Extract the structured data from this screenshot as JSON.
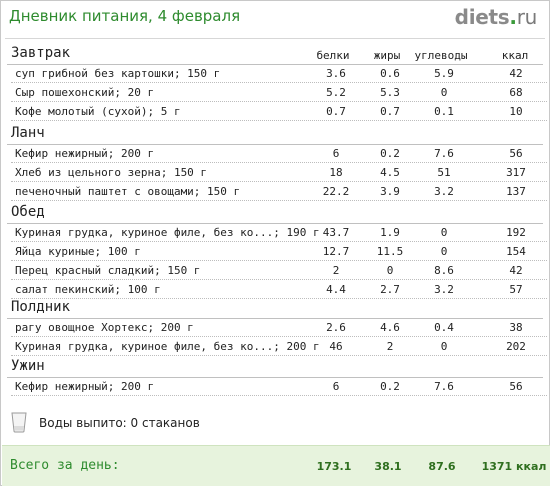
{
  "header": {
    "title": "Дневник питания, 4 февраля",
    "brand_name": "diets",
    "brand_dot": ".",
    "brand_tld": "ru"
  },
  "columns": {
    "protein": "белки",
    "fat": "жиры",
    "carbs": "углеводы",
    "kcal": "ккал"
  },
  "meals": [
    {
      "title": "Завтрак",
      "items": [
        {
          "name": "суп грибной без картошки; 150 г",
          "protein": "3.6",
          "fat": "0.6",
          "carbs": "5.9",
          "kcal": "42"
        },
        {
          "name": "Сыр пошехонский; 20 г",
          "protein": "5.2",
          "fat": "5.3",
          "carbs": "0",
          "kcal": "68"
        },
        {
          "name": "Кофе молотый (сухой); 5 г",
          "protein": "0.7",
          "fat": "0.7",
          "carbs": "0.1",
          "kcal": "10"
        }
      ]
    },
    {
      "title": "Ланч",
      "items": [
        {
          "name": "Кефир нежирный; 200 г",
          "protein": "6",
          "fat": "0.2",
          "carbs": "7.6",
          "kcal": "56"
        },
        {
          "name": "Хлеб из цельного зерна; 150 г",
          "protein": "18",
          "fat": "4.5",
          "carbs": "51",
          "kcal": "317"
        },
        {
          "name": "печеночный паштет с овощами; 150 г",
          "protein": "22.2",
          "fat": "3.9",
          "carbs": "3.2",
          "kcal": "137"
        }
      ]
    },
    {
      "title": "Обед",
      "items": [
        {
          "name": "Куриная грудка, куриное филе, без ко...; 190 г",
          "protein": "43.7",
          "fat": "1.9",
          "carbs": "0",
          "kcal": "192"
        },
        {
          "name": "Яйца куриные; 100 г",
          "protein": "12.7",
          "fat": "11.5",
          "carbs": "0",
          "kcal": "154"
        },
        {
          "name": "Перец красный сладкий; 150 г",
          "protein": "2",
          "fat": "0",
          "carbs": "8.6",
          "kcal": "42"
        },
        {
          "name": "салат пекинский; 100 г",
          "protein": "4.4",
          "fat": "2.7",
          "carbs": "3.2",
          "kcal": "57"
        }
      ]
    },
    {
      "title": "Полдник",
      "items": [
        {
          "name": "рагу овощное Хортекс; 200 г",
          "protein": "2.6",
          "fat": "4.6",
          "carbs": "0.4",
          "kcal": "38"
        },
        {
          "name": "Куриная грудка, куриное филе, без ко...; 200 г",
          "protein": "46",
          "fat": "2",
          "carbs": "0",
          "kcal": "202"
        }
      ]
    },
    {
      "title": "Ужин",
      "items": [
        {
          "name": "Кефир нежирный; 200 г",
          "protein": "6",
          "fat": "0.2",
          "carbs": "7.6",
          "kcal": "56"
        }
      ]
    }
  ],
  "water": {
    "text": "Воды выпито: 0 стаканов",
    "icon": "water-glass-icon"
  },
  "totals": {
    "label": "Всего за день:",
    "protein": "173.1",
    "fat": "38.1",
    "carbs": "87.6",
    "kcal": "1371 ккал"
  },
  "colors": {
    "title_green": "#2e8b2e",
    "footer_bg": "#e7f3dd"
  }
}
